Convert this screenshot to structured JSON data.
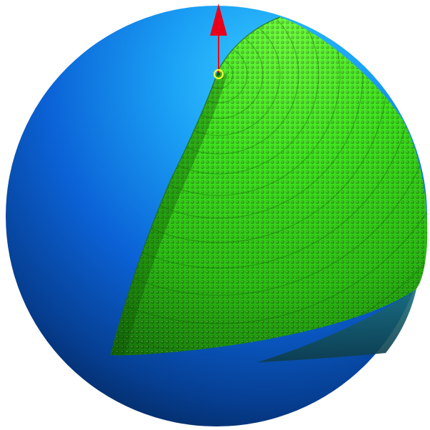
{
  "scene": {
    "colors": {
      "background": "#ffffff",
      "sphere_highlight": "#2ec3ff",
      "sphere_mid": "#0d6fe0",
      "sphere_dark": "#032a5c",
      "shell_highlight": "#7cff4a",
      "shell_mid": "#35d61a",
      "shell_dark": "#1a7a0c",
      "axis_arrow": "#e8001a",
      "pole_ring": "#f2ff3a"
    },
    "icons": {
      "sphere": "blue-sphere",
      "shell": "green-particle-shell",
      "axis": "red-arrow"
    }
  }
}
